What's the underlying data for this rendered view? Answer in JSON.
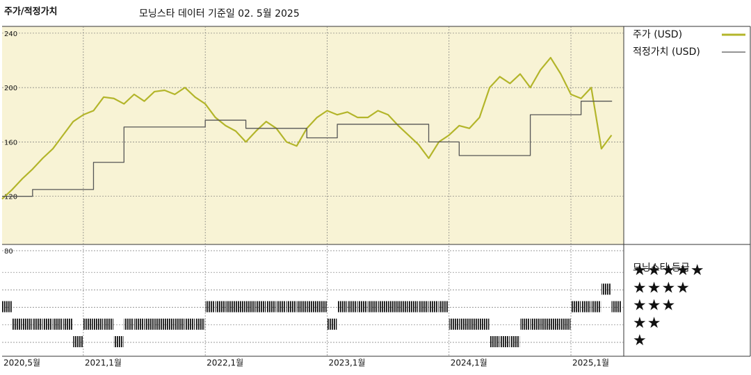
{
  "chart_data": {
    "type": "line",
    "title": "주가/적정가치",
    "subtitle": "모닝스타 데이터 기준일 02. 5월 2025",
    "x": [
      "2020-05",
      "2020-06",
      "2020-07",
      "2020-08",
      "2020-09",
      "2020-10",
      "2020-11",
      "2020-12",
      "2021-01",
      "2021-02",
      "2021-03",
      "2021-04",
      "2021-05",
      "2021-06",
      "2021-07",
      "2021-08",
      "2021-09",
      "2021-10",
      "2021-11",
      "2021-12",
      "2022-01",
      "2022-02",
      "2022-03",
      "2022-04",
      "2022-05",
      "2022-06",
      "2022-07",
      "2022-08",
      "2022-09",
      "2022-10",
      "2022-11",
      "2022-12",
      "2023-01",
      "2023-02",
      "2023-03",
      "2023-04",
      "2023-05",
      "2023-06",
      "2023-07",
      "2023-08",
      "2023-09",
      "2023-10",
      "2023-11",
      "2023-12",
      "2024-01",
      "2024-02",
      "2024-03",
      "2024-04",
      "2024-05",
      "2024-06",
      "2024-07",
      "2024-08",
      "2024-09",
      "2024-10",
      "2024-11",
      "2024-12",
      "2025-01",
      "2025-02",
      "2025-03",
      "2025-04",
      "2025-05"
    ],
    "xticks": [
      {
        "value": "2020-05",
        "label": "2020,5월"
      },
      {
        "value": "2021-01",
        "label": "2021,1월"
      },
      {
        "value": "2022-01",
        "label": "2022,1월"
      },
      {
        "value": "2023-01",
        "label": "2023,1월"
      },
      {
        "value": "2024-01",
        "label": "2024,1월"
      },
      {
        "value": "2025-01",
        "label": "2025,1월"
      }
    ],
    "ylim": [
      80,
      245
    ],
    "yticks": [
      80,
      120,
      160,
      200,
      240
    ],
    "grid": true,
    "series": [
      {
        "name": "주가 (USD)",
        "color": "#b3b52a",
        "values": [
          118,
          125,
          133,
          140,
          148,
          155,
          165,
          175,
          180,
          183,
          193,
          192,
          188,
          195,
          190,
          197,
          198,
          195,
          200,
          193,
          188,
          178,
          172,
          168,
          160,
          168,
          175,
          170,
          160,
          157,
          170,
          178,
          183,
          180,
          182,
          178,
          178,
          183,
          180,
          172,
          165,
          158,
          148,
          160,
          165,
          172,
          170,
          178,
          200,
          208,
          203,
          210,
          200,
          213,
          222,
          210,
          195,
          192,
          200,
          155,
          165
        ]
      },
      {
        "name": "적정가치 (USD)",
        "color": "#555555",
        "step": true,
        "values": [
          120,
          120,
          120,
          125,
          125,
          125,
          125,
          125,
          125,
          145,
          145,
          145,
          171,
          171,
          171,
          171,
          171,
          171,
          171,
          171,
          176,
          176,
          176,
          176,
          170,
          170,
          170,
          170,
          170,
          170,
          163,
          163,
          163,
          173,
          173,
          173,
          173,
          173,
          173,
          173,
          173,
          173,
          160,
          160,
          160,
          150,
          150,
          150,
          150,
          150,
          150,
          150,
          180,
          180,
          180,
          180,
          180,
          190,
          190,
          190,
          190
        ]
      }
    ],
    "rating": {
      "title": "모닝스타 등급",
      "levels": [
        5,
        4,
        3,
        2,
        1
      ],
      "labels": [
        "★★★★★",
        "★★★★",
        "★★★",
        "★★",
        "★"
      ],
      "values": [
        3,
        2,
        2,
        2,
        2,
        2,
        2,
        1,
        2,
        2,
        2,
        1,
        2,
        2,
        2,
        2,
        2,
        2,
        2,
        2,
        3,
        3,
        3,
        3,
        3,
        3,
        3,
        3,
        3,
        3,
        3,
        3,
        2,
        3,
        3,
        3,
        3,
        3,
        3,
        3,
        3,
        3,
        3,
        3,
        2,
        2,
        2,
        2,
        1,
        1,
        1,
        2,
        2,
        2,
        2,
        2,
        3,
        3,
        3,
        4,
        3
      ]
    }
  }
}
